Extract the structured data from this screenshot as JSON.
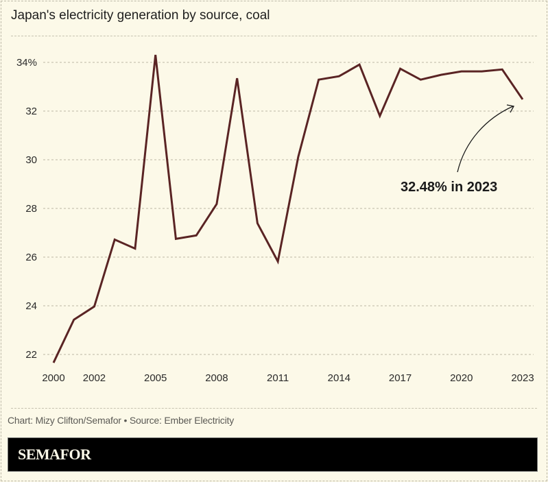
{
  "chart_data": {
    "type": "line",
    "title": "Japan's electricity generation by source, coal",
    "xlabel": "",
    "ylabel": "",
    "x": [
      2000,
      2001,
      2002,
      2003,
      2004,
      2005,
      2006,
      2007,
      2008,
      2009,
      2010,
      2011,
      2012,
      2013,
      2014,
      2015,
      2016,
      2017,
      2018,
      2019,
      2020,
      2021,
      2022,
      2023
    ],
    "values": [
      21.66,
      23.43,
      23.97,
      26.72,
      26.35,
      34.31,
      26.75,
      26.89,
      28.18,
      33.35,
      27.39,
      25.82,
      30.12,
      33.29,
      33.43,
      33.91,
      31.8,
      33.74,
      33.29,
      33.49,
      33.63,
      33.63,
      33.71,
      32.48
    ],
    "xlim": [
      2000,
      2023
    ],
    "ylim": [
      22,
      34
    ],
    "x_ticks": [
      "2000",
      "2002",
      "2005",
      "2008",
      "2011",
      "2014",
      "2017",
      "2020",
      "2023"
    ],
    "y_ticks": [
      {
        "value": 22,
        "label": "22"
      },
      {
        "value": 24,
        "label": "24"
      },
      {
        "value": 26,
        "label": "26"
      },
      {
        "value": 28,
        "label": "28"
      },
      {
        "value": 30,
        "label": "30"
      },
      {
        "value": 32,
        "label": "32"
      },
      {
        "value": 34,
        "label": "34%"
      }
    ],
    "grid": true,
    "line_color": "#5a2424",
    "annotation": {
      "text": "32.48% in 2023",
      "x": 2023,
      "y": 32.48
    }
  },
  "footer": {
    "credit": "Chart: Mizy Clifton/Semafor • Source: Ember Electricity",
    "logo": "SEMAFOR"
  },
  "colors": {
    "background": "#fcf9e8",
    "banner": "#000000",
    "line": "#5a2424"
  }
}
